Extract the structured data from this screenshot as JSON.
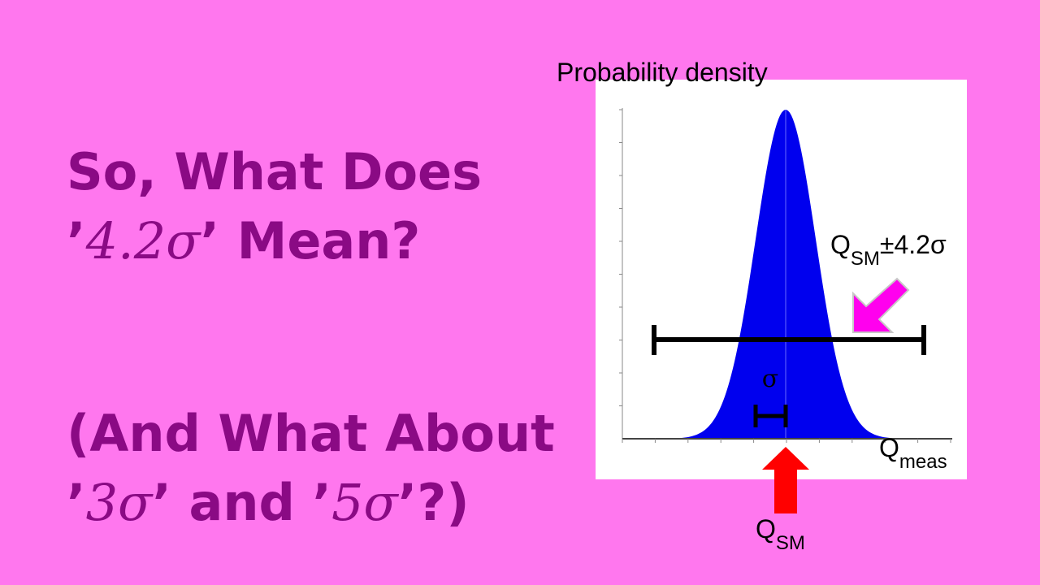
{
  "title": {
    "line1": "So, What Does",
    "line2": [
      "’",
      "4.2σ",
      "’ Mean?"
    ]
  },
  "subtitle": {
    "line1": "(And What About",
    "line2": [
      "’",
      "3σ",
      "’ and ’",
      "5σ",
      "’?)"
    ]
  },
  "diagram": {
    "y_label": "Probability density",
    "band_label": {
      "main": "Q",
      "sub": "SM",
      "rest": "±4.2σ"
    },
    "sigma_label": "σ",
    "x_label": {
      "main": "Q",
      "sub": "meas"
    },
    "arrow_label": {
      "main": "Q",
      "sub": "SM"
    }
  }
}
